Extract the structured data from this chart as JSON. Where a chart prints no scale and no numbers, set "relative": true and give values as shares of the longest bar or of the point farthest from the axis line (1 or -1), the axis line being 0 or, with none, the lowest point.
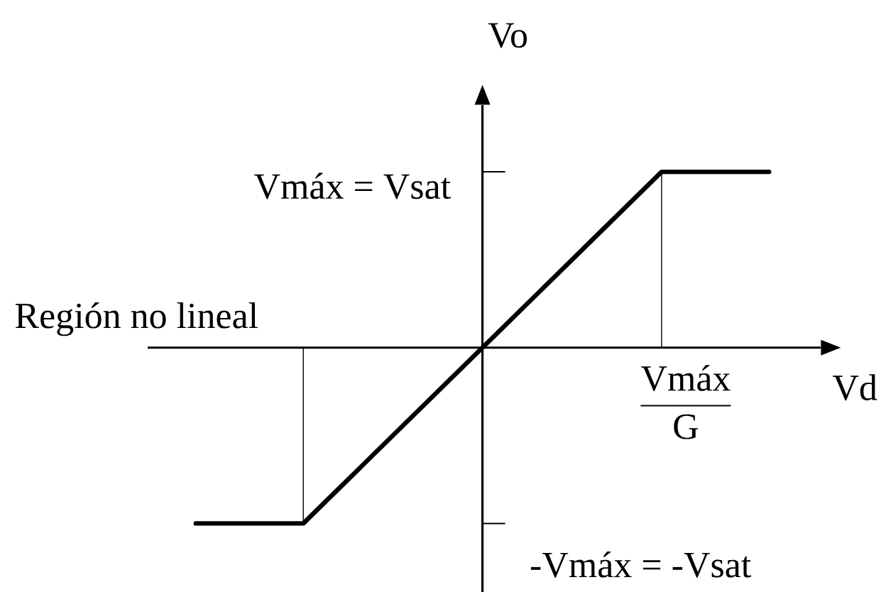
{
  "chart_data": {
    "type": "line",
    "relative": true,
    "xlabel": "Vd",
    "ylabel": "Vo",
    "categories": [
      null,
      null,
      null,
      null,
      null,
      null,
      null,
      null,
      null,
      null,
      null,
      null,
      null,
      null,
      null,
      null,
      null
    ],
    "series": [
      {
        "color": "#000000",
        "values": [
          -1,
          -1,
          -1,
          -1,
          -0.8,
          -0.6,
          -0.4,
          -0.2,
          0,
          0.2,
          0.4,
          0.6,
          0.8,
          1,
          1,
          1,
          1
        ]
      }
    ],
    "annotations": [
      "Región no lineal",
      "Vmáx = Vsat",
      "-Vmáx = -Vsat",
      "\\frac{\\text{Vmáx}}{\\text{G}}"
    ],
    "marker": "none",
    "line_style": "solid"
  }
}
